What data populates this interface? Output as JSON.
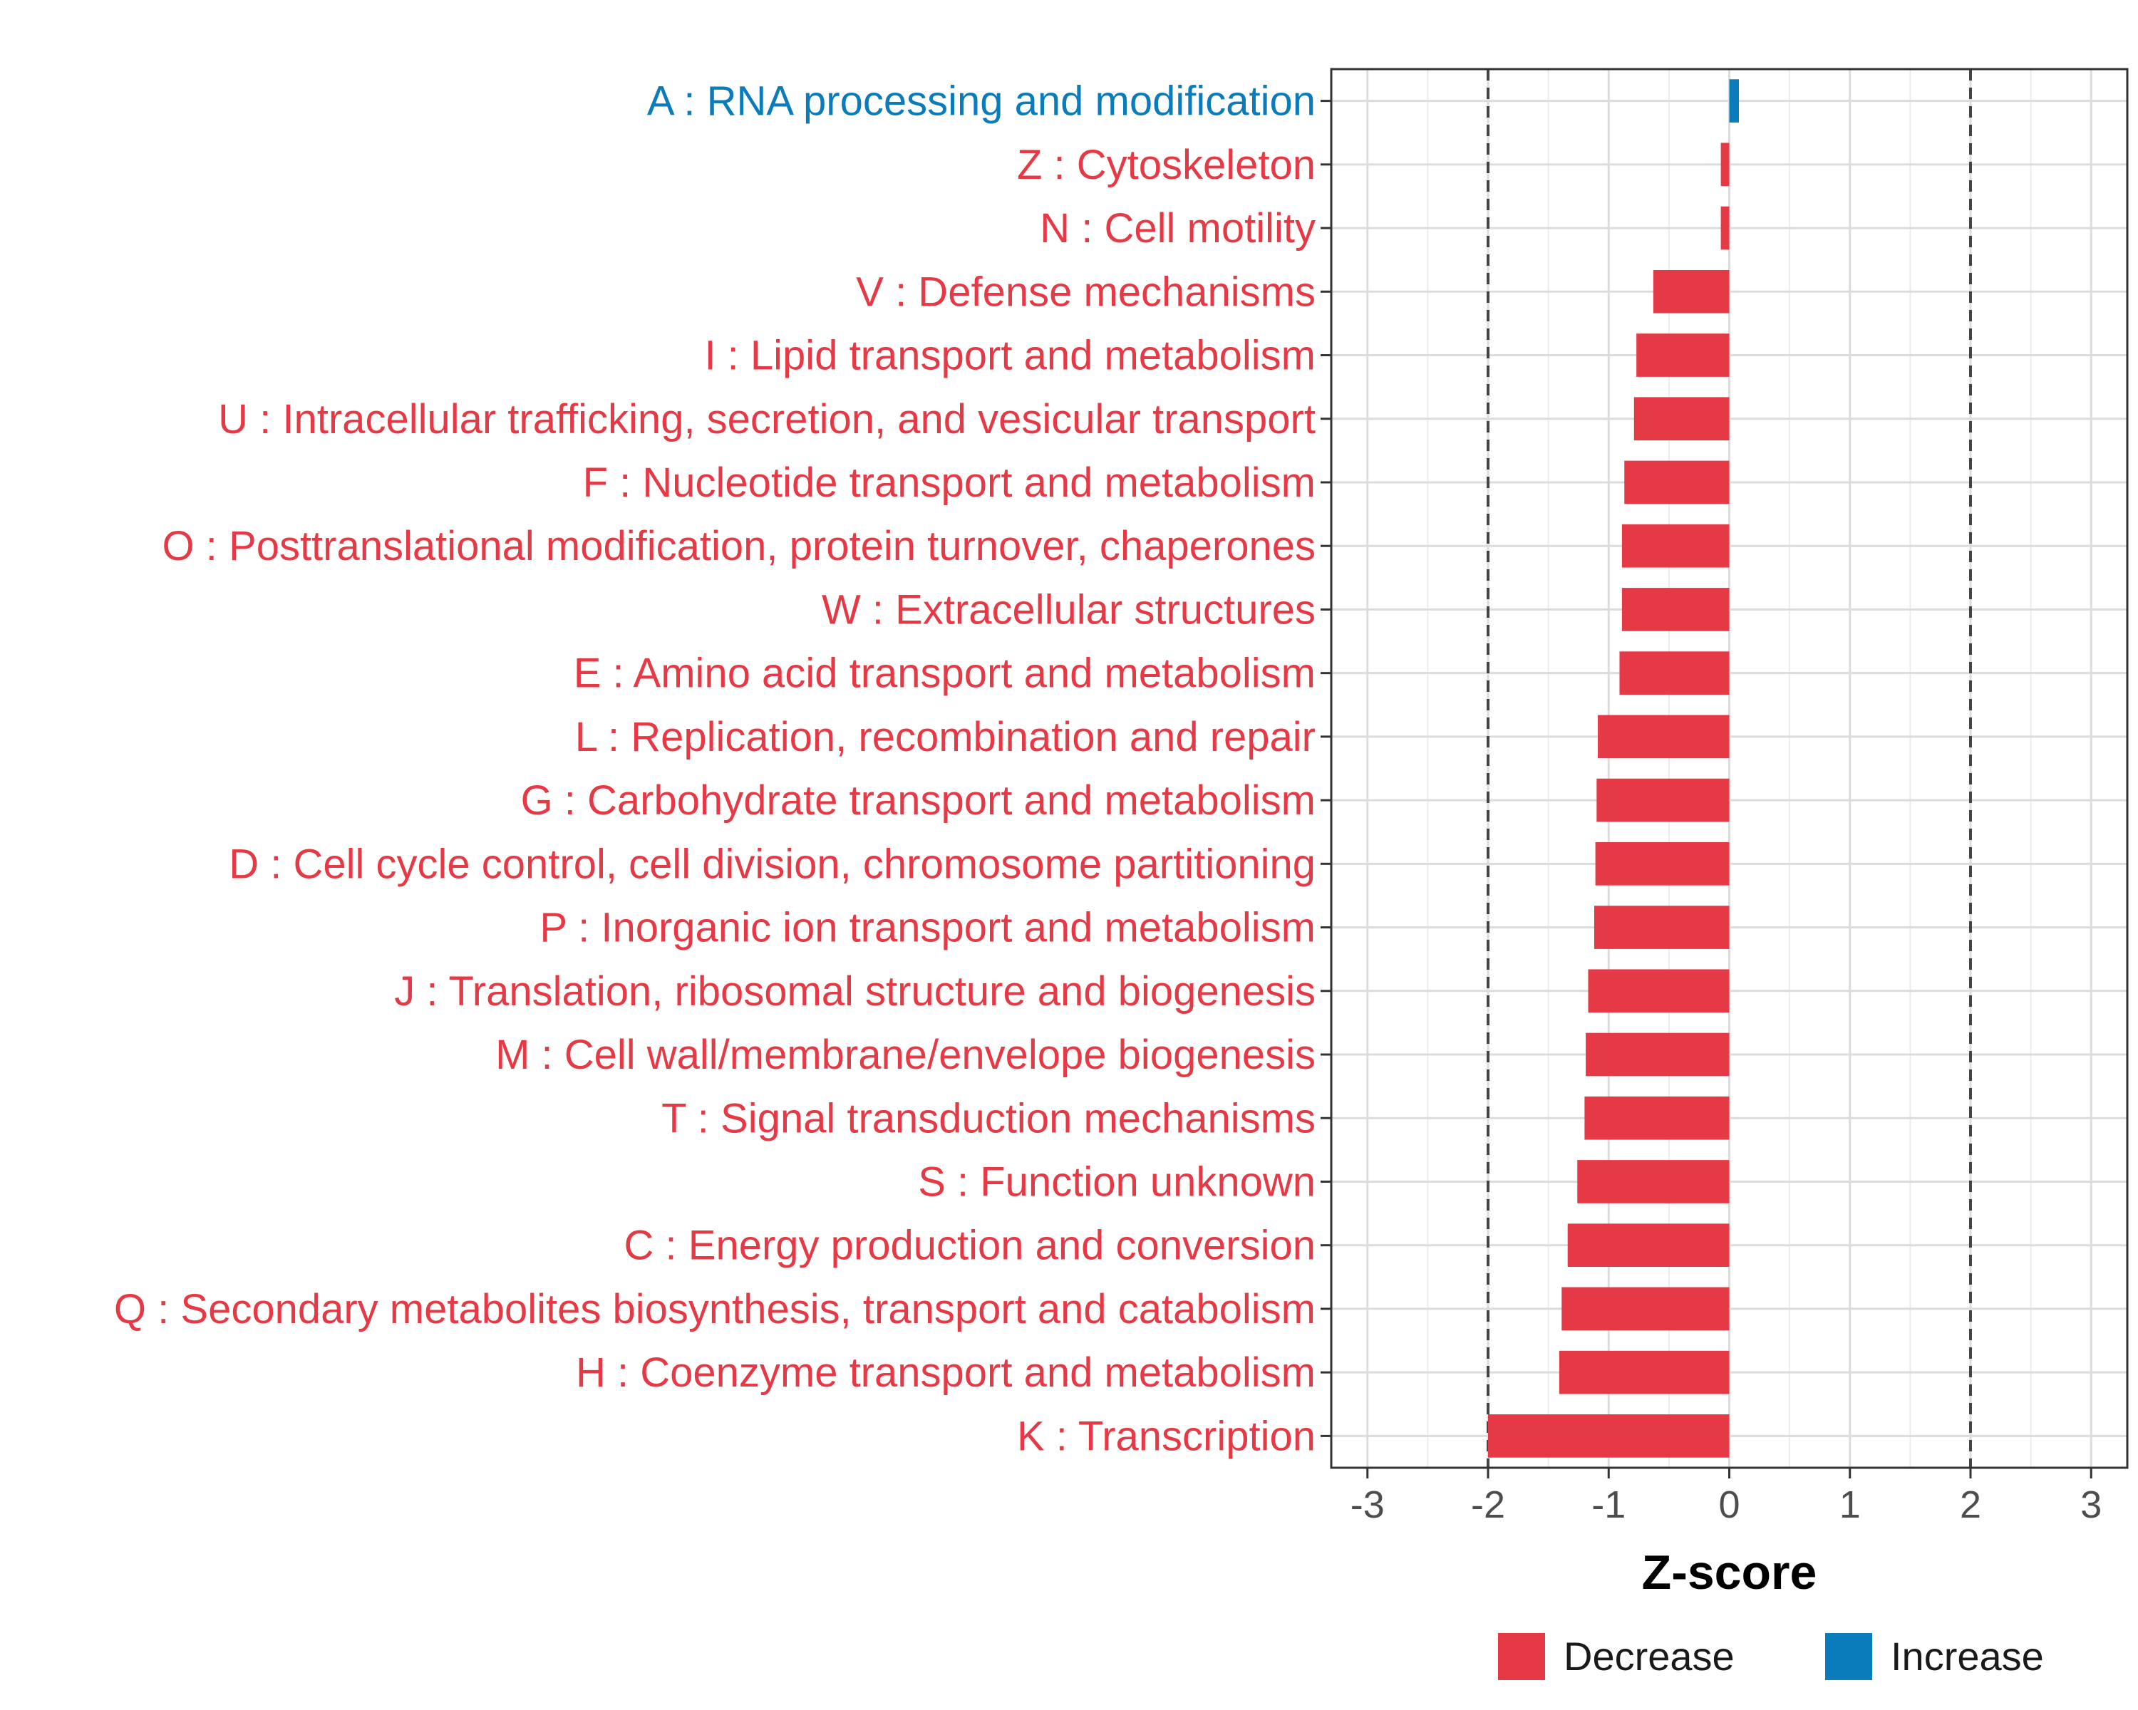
{
  "chart_data": {
    "type": "bar",
    "orientation": "horizontal",
    "xlabel": "Z-score",
    "xlim": [
      -3.3,
      3.3
    ],
    "xticks": [
      -3,
      -2,
      -1,
      0,
      1,
      2,
      3
    ],
    "reference_lines": [
      -2,
      2
    ],
    "grid": true,
    "legend_position": "bottom",
    "colors": {
      "Decrease": "#e63946",
      "Increase": "#0a7cbc"
    },
    "legend": [
      {
        "label": "Decrease",
        "color": "#e63946"
      },
      {
        "label": "Increase",
        "color": "#0a7cbc"
      }
    ],
    "categories": [
      "A : RNA processing and modification",
      "Z : Cytoskeleton",
      "N : Cell motility",
      "V : Defense mechanisms",
      "I : Lipid transport and metabolism",
      "U : Intracellular trafficking, secretion, and vesicular transport",
      "F : Nucleotide transport and metabolism",
      "O : Posttranslational modification, protein turnover, chaperones",
      "W : Extracellular structures",
      "E : Amino acid transport and metabolism",
      "L : Replication, recombination and repair",
      "G : Carbohydrate transport and metabolism",
      "D : Cell cycle control, cell division, chromosome partitioning",
      "P : Inorganic ion transport and metabolism",
      "J : Translation, ribosomal structure and biogenesis",
      "M : Cell wall/membrane/envelope biogenesis",
      "T : Signal transduction mechanisms",
      "S : Function unknown",
      "C : Energy production and conversion",
      "Q : Secondary metabolites biosynthesis, transport and catabolism",
      "H : Coenzyme transport and metabolism",
      "K : Transcription"
    ],
    "values": [
      0.08,
      -0.07,
      -0.07,
      -0.63,
      -0.77,
      -0.79,
      -0.87,
      -0.89,
      -0.89,
      -0.91,
      -1.09,
      -1.1,
      -1.11,
      -1.12,
      -1.17,
      -1.19,
      -1.2,
      -1.26,
      -1.34,
      -1.39,
      -1.41,
      -2.0
    ],
    "groups": [
      "Increase",
      "Decrease",
      "Decrease",
      "Decrease",
      "Decrease",
      "Decrease",
      "Decrease",
      "Decrease",
      "Decrease",
      "Decrease",
      "Decrease",
      "Decrease",
      "Decrease",
      "Decrease",
      "Decrease",
      "Decrease",
      "Decrease",
      "Decrease",
      "Decrease",
      "Decrease",
      "Decrease",
      "Decrease"
    ]
  }
}
